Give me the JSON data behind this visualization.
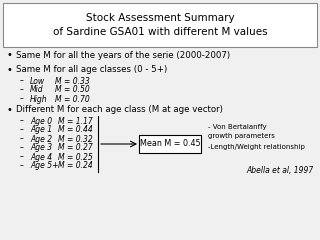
{
  "title": "Stock Assessment Summary\nof Sardine GSA01 with different M values",
  "bullet1": "Same M for all the years of the serie (2000-2007)",
  "bullet2": "Same M for all age classes (0 - 5+)",
  "sub2": [
    [
      "Low",
      "M = 0.33"
    ],
    [
      "Mid",
      "M = 0.50"
    ],
    [
      "High",
      "M = 0.70"
    ]
  ],
  "bullet3": "Different M for each age class (M at age vector)",
  "sub3": [
    [
      "Age 0",
      "M = 1.17"
    ],
    [
      "Age 1",
      "M = 0.44"
    ],
    [
      "Age 2",
      "M = 0.32"
    ],
    [
      "Age 3",
      "M = 0.27"
    ],
    [
      "Age 4",
      "M = 0.25"
    ],
    [
      "Age 5+",
      "M = 0.24"
    ]
  ],
  "mean_label": "Mean M = 0.45",
  "note1": "- Von Bertalanffy",
  "note2": "growth parameters",
  "note3": "-Length/Weight relationship",
  "note4": "Abella et al, 1997",
  "bg_color": "#f0f0f0",
  "title_box_color": "#ffffff",
  "box_color": "#ffffff"
}
